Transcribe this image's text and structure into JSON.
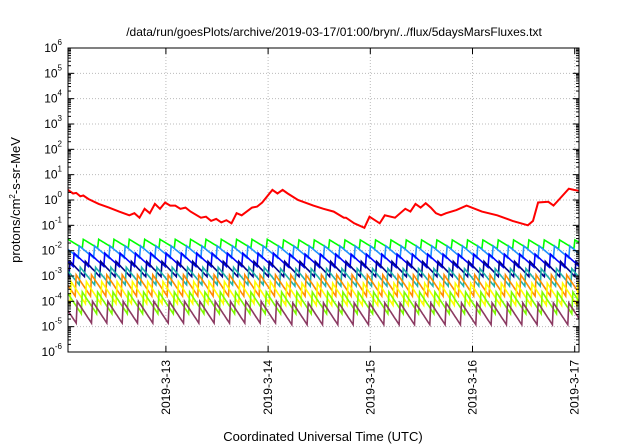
{
  "chart_data": {
    "type": "line",
    "title": "/data/run/goesPlots/archive/2019-03-17/01:00/bryn/../flux/5daysMarsFluxes.txt",
    "xlabel": "Coordinated Universal Time (UTC)",
    "ylabel_parts": [
      "protons/cm",
      "2",
      "-s-sr-MeV"
    ],
    "y_scale": "log",
    "ylim": [
      1e-06,
      1000000.0
    ],
    "xlim_days": [
      "2019-03-12 01:00",
      "2019-03-17 01:00"
    ],
    "grid": true,
    "legend": "none",
    "x_ticks": [
      {
        "label": "2019-3-13",
        "day": 0.958
      },
      {
        "label": "2019-3-14",
        "day": 1.958
      },
      {
        "label": "2019-3-15",
        "day": 2.958
      },
      {
        "label": "2019-3-16",
        "day": 3.958
      },
      {
        "label": "2019-3-17",
        "day": 4.958
      }
    ],
    "y_ticks": [
      {
        "base": "10",
        "exp": "-6",
        "value": 1e-06
      },
      {
        "base": "10",
        "exp": "-5",
        "value": 1e-05
      },
      {
        "base": "10",
        "exp": "-4",
        "value": 0.0001
      },
      {
        "base": "10",
        "exp": "-3",
        "value": 0.001
      },
      {
        "base": "10",
        "exp": "-2",
        "value": 0.01
      },
      {
        "base": "10",
        "exp": "-1",
        "value": 0.1
      },
      {
        "base": "10",
        "exp": "0",
        "value": 1
      },
      {
        "base": "10",
        "exp": "1",
        "value": 10
      },
      {
        "base": "10",
        "exp": "2",
        "value": 100
      },
      {
        "base": "10",
        "exp": "3",
        "value": 1000
      },
      {
        "base": "10",
        "exp": "4",
        "value": 10000
      },
      {
        "base": "10",
        "exp": "5",
        "value": 100000
      },
      {
        "base": "10",
        "exp": "6",
        "value": 1000000
      }
    ],
    "series": [
      {
        "color": "#ff0000",
        "x": [
          0.0,
          0.05,
          0.08,
          0.12,
          0.15,
          0.2,
          0.3,
          0.4,
          0.5,
          0.6,
          0.65,
          0.7,
          0.75,
          0.8,
          0.85,
          0.9,
          0.95,
          1.0,
          1.05,
          1.1,
          1.15,
          1.2,
          1.3,
          1.35,
          1.4,
          1.45,
          1.5,
          1.55,
          1.6,
          1.65,
          1.7,
          1.8,
          1.85,
          1.9,
          2.0,
          2.05,
          2.1,
          2.15,
          2.25,
          2.4,
          2.5,
          2.6,
          2.7,
          2.72,
          2.8,
          2.9,
          2.95,
          3.05,
          3.1,
          3.2,
          3.3,
          3.35,
          3.4,
          3.45,
          3.5,
          3.55,
          3.6,
          3.65,
          3.7,
          3.8,
          3.9,
          4.05,
          4.2,
          4.35,
          4.5,
          4.55,
          4.6,
          4.7,
          4.75,
          4.8,
          4.9,
          4.95,
          5.0
        ],
        "y": [
          2.5,
          1.8,
          1.9,
          1.4,
          1.5,
          1.1,
          0.7,
          0.5,
          0.35,
          0.25,
          0.3,
          0.2,
          0.45,
          0.3,
          0.7,
          0.45,
          0.8,
          0.6,
          0.6,
          0.45,
          0.5,
          0.35,
          0.2,
          0.22,
          0.15,
          0.18,
          0.13,
          0.16,
          0.12,
          0.3,
          0.25,
          0.5,
          0.55,
          0.8,
          2.5,
          1.8,
          2.5,
          1.8,
          1.0,
          0.6,
          0.45,
          0.35,
          0.2,
          0.2,
          0.12,
          0.08,
          0.22,
          0.12,
          0.25,
          0.2,
          0.45,
          0.35,
          0.7,
          0.5,
          0.75,
          0.5,
          0.3,
          0.25,
          0.3,
          0.4,
          0.6,
          0.35,
          0.25,
          0.15,
          0.1,
          0.15,
          0.8,
          0.85,
          0.6,
          1.0,
          2.8,
          2.5,
          2.3
        ]
      },
      {
        "color": "#00ff00",
        "base": 0.028,
        "trough": 0.012,
        "phase": 0.0
      },
      {
        "color": "#1e90ff",
        "base": 0.016,
        "trough": 0.005,
        "phase": 0.3
      },
      {
        "color": "#0000ff",
        "base": 0.008,
        "trough": 0.0022,
        "phase": 0.6
      },
      {
        "color": "#00008b",
        "base": 0.004,
        "trough": 0.0009,
        "phase": 0.9
      },
      {
        "color": "#20b2aa",
        "base": 0.0022,
        "trough": 0.0004,
        "phase": 0.2
      },
      {
        "color": "#ff8c00",
        "base": 0.0012,
        "trough": 0.00015,
        "phase": 0.5
      },
      {
        "color": "#ffff00",
        "base": 0.0006,
        "trough": 7e-05,
        "phase": 0.8
      },
      {
        "color": "#7cfc00",
        "base": 0.00025,
        "trough": 3e-05,
        "phase": 0.1
      },
      {
        "color": "#8b3a62",
        "base": 0.0001,
        "trough": 1.2e-05,
        "phase": 0.4
      }
    ]
  }
}
